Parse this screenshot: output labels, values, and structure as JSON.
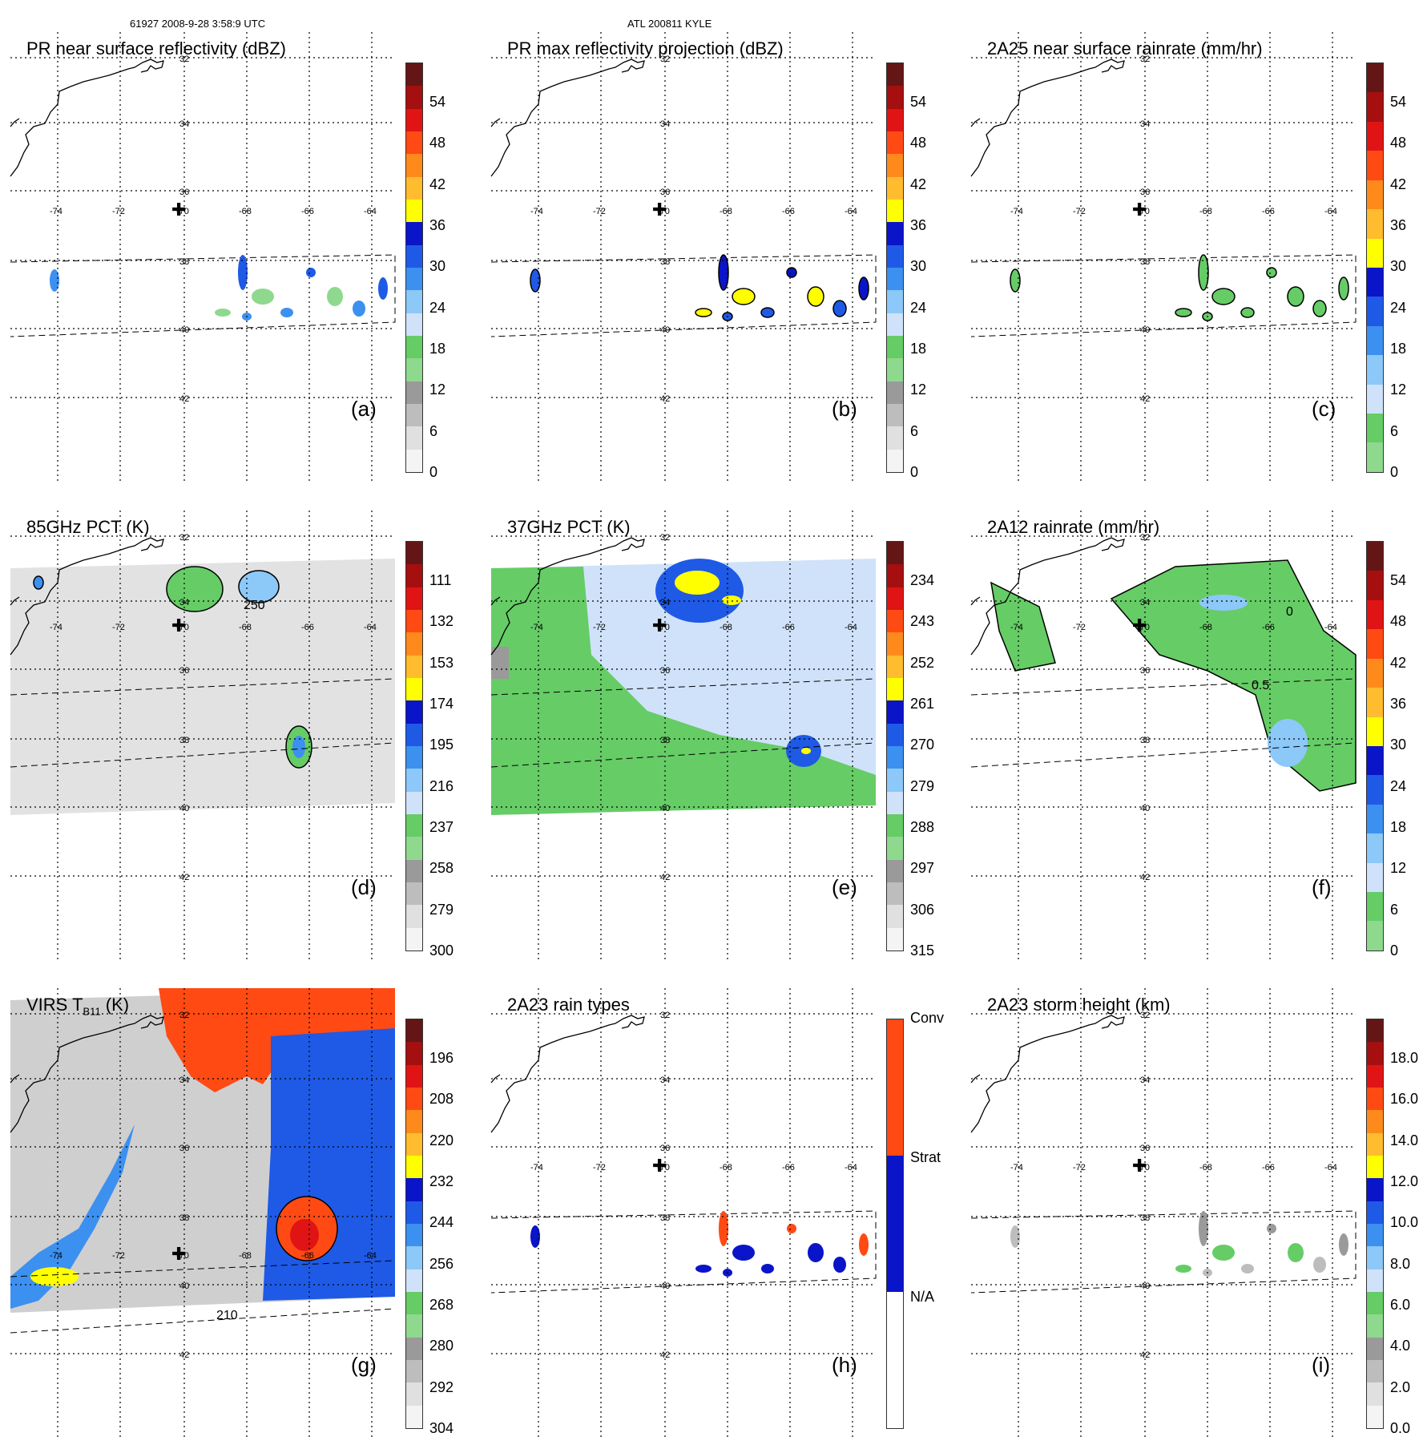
{
  "header": {
    "left": "61927 2008-9-28 3:58:9 UTC",
    "center": "ATL 200811 KYLE"
  },
  "map": {
    "lat_labels": [
      "42",
      "40",
      "38",
      "36",
      "34",
      "32"
    ],
    "lon_labels": [
      "-74",
      "-72",
      "-70",
      "-68",
      "-66",
      "-64"
    ],
    "storm_center_marker": "✚"
  },
  "panels": [
    {
      "title": "PR near surface reflectivity (dBZ)",
      "label": "(a)",
      "colorbar_labels": [
        "54",
        "48",
        "42",
        "36",
        "30",
        "24",
        "18",
        "12",
        "6",
        "0"
      ],
      "colorbar_colors": [
        "#641616",
        "#a50f0f",
        "#e01414",
        "#ff4a14",
        "#ff8a1c",
        "#ffbc2e",
        "#ffff00",
        "#0a14c8",
        "#1e5ae6",
        "#3c90f0",
        "#8cc8f8",
        "#cfe2fa",
        "#66cc66",
        "#8ed98e",
        "#9a9a9a",
        "#bdbdbd",
        "#e0e0e0",
        "#f4f4f4"
      ]
    },
    {
      "title": "PR max reflectivity projection (dBZ)",
      "label": "(b)",
      "colorbar_labels": [
        "54",
        "48",
        "42",
        "36",
        "30",
        "24",
        "18",
        "12",
        "6",
        "0"
      ],
      "colorbar_colors": [
        "#641616",
        "#a50f0f",
        "#e01414",
        "#ff4a14",
        "#ff8a1c",
        "#ffbc2e",
        "#ffff00",
        "#0a14c8",
        "#1e5ae6",
        "#3c90f0",
        "#8cc8f8",
        "#cfe2fa",
        "#66cc66",
        "#8ed98e",
        "#9a9a9a",
        "#bdbdbd",
        "#e0e0e0",
        "#f4f4f4"
      ]
    },
    {
      "title": "2A25 near surface rainrate (mm/hr)",
      "label": "(c)",
      "colorbar_labels": [
        "54",
        "48",
        "42",
        "36",
        "30",
        "24",
        "18",
        "12",
        "6",
        "0"
      ],
      "colorbar_colors": [
        "#641616",
        "#a50f0f",
        "#e01414",
        "#ff4a14",
        "#ff8a1c",
        "#ffbc2e",
        "#ffff00",
        "#0a14c8",
        "#1e5ae6",
        "#3c90f0",
        "#8cc8f8",
        "#cfe2fa",
        "#66cc66",
        "#8ed98e"
      ]
    },
    {
      "title": "85GHz PCT (K)",
      "label": "(d)",
      "colorbar_labels": [
        "111",
        "132",
        "153",
        "174",
        "195",
        "216",
        "237",
        "258",
        "279",
        "300"
      ],
      "colorbar_colors": [
        "#641616",
        "#a50f0f",
        "#e01414",
        "#ff4a14",
        "#ff8a1c",
        "#ffbc2e",
        "#ffff00",
        "#0a14c8",
        "#1e5ae6",
        "#3c90f0",
        "#8cc8f8",
        "#cfe2fa",
        "#66cc66",
        "#8ed98e",
        "#9a9a9a",
        "#bdbdbd",
        "#e0e0e0",
        "#f4f4f4"
      ],
      "contour_labels": [
        "250"
      ]
    },
    {
      "title": "37GHz PCT (K)",
      "label": "(e)",
      "colorbar_labels": [
        "234",
        "243",
        "252",
        "261",
        "270",
        "279",
        "288",
        "297",
        "306",
        "315"
      ],
      "colorbar_colors": [
        "#641616",
        "#a50f0f",
        "#e01414",
        "#ff4a14",
        "#ff8a1c",
        "#ffbc2e",
        "#ffff00",
        "#0a14c8",
        "#1e5ae6",
        "#3c90f0",
        "#8cc8f8",
        "#cfe2fa",
        "#66cc66",
        "#8ed98e",
        "#9a9a9a",
        "#bdbdbd",
        "#e0e0e0",
        "#f4f4f4"
      ]
    },
    {
      "title": "2A12 rainrate (mm/hr)",
      "label": "(f)",
      "colorbar_labels": [
        "54",
        "48",
        "42",
        "36",
        "30",
        "24",
        "18",
        "12",
        "6",
        "0"
      ],
      "colorbar_colors": [
        "#641616",
        "#a50f0f",
        "#e01414",
        "#ff4a14",
        "#ff8a1c",
        "#ffbc2e",
        "#ffff00",
        "#0a14c8",
        "#1e5ae6",
        "#3c90f0",
        "#8cc8f8",
        "#cfe2fa",
        "#66cc66",
        "#8ed98e"
      ],
      "contour_labels": [
        "0",
        "0.5"
      ]
    },
    {
      "title": "VIRS T",
      "title_sub": "B11",
      "title_suffix": " (K)",
      "label": "(g)",
      "colorbar_labels": [
        "196",
        "208",
        "220",
        "232",
        "244",
        "256",
        "268",
        "280",
        "292",
        "304"
      ],
      "colorbar_colors": [
        "#641616",
        "#a50f0f",
        "#e01414",
        "#ff4a14",
        "#ff8a1c",
        "#ffbc2e",
        "#ffff00",
        "#0a14c8",
        "#1e5ae6",
        "#3c90f0",
        "#8cc8f8",
        "#cfe2fa",
        "#66cc66",
        "#8ed98e",
        "#9a9a9a",
        "#bdbdbd",
        "#e0e0e0",
        "#f4f4f4"
      ],
      "contour_labels": [
        "210"
      ]
    },
    {
      "title": "2A23 rain types",
      "label": "(h)",
      "colorbar_labels": [
        "Conv",
        "Strat",
        "N/A"
      ],
      "colorbar_colors": [
        "#ff4a14",
        "#0a14c8",
        "#ffffff"
      ]
    },
    {
      "title": "2A23 storm height (km)",
      "label": "(i)",
      "colorbar_labels": [
        "18.0",
        "16.0",
        "14.0",
        "12.0",
        "10.0",
        "8.0",
        "6.0",
        "4.0",
        "2.0",
        "0.0"
      ],
      "colorbar_colors": [
        "#641616",
        "#a50f0f",
        "#e01414",
        "#ff4a14",
        "#ff8a1c",
        "#ffbc2e",
        "#ffff00",
        "#0a14c8",
        "#1e5ae6",
        "#3c90f0",
        "#8cc8f8",
        "#cfe2fa",
        "#66cc66",
        "#8ed98e",
        "#9a9a9a",
        "#bdbdbd",
        "#e0e0e0",
        "#f4f4f4"
      ]
    }
  ]
}
